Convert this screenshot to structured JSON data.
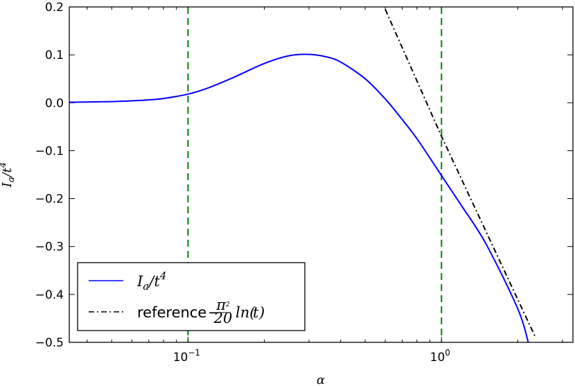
{
  "chart_data": {
    "type": "line",
    "x_scale": "log",
    "xlabel": "α",
    "ylabel": "I_a/t^4",
    "xlim": [
      0.034,
      3.3
    ],
    "ylim": [
      -0.5,
      0.2
    ],
    "y_ticks": [
      "0.2",
      "0.1",
      "0.0",
      "−0.1",
      "−0.2",
      "−0.3",
      "−0.4",
      "−0.5"
    ],
    "x_ticks": [
      {
        "base": "10",
        "exp": "−1"
      },
      {
        "base": "10",
        "exp": "0"
      }
    ],
    "vlines": [
      0.1,
      1.0
    ],
    "vline_color": "#008000",
    "series": [
      {
        "name": "I_a/t^4",
        "color": "#0000ff",
        "style": "solid",
        "x": [
          0.034,
          0.04,
          0.05,
          0.06,
          0.07,
          0.08,
          0.1,
          0.12,
          0.15,
          0.2,
          0.25,
          0.3,
          0.35,
          0.4,
          0.5,
          0.6,
          0.7,
          0.8,
          1.0,
          1.2,
          1.5,
          2.0,
          2.2
        ],
        "y": [
          0.001,
          0.0015,
          0.0025,
          0.004,
          0.006,
          0.009,
          0.018,
          0.031,
          0.052,
          0.082,
          0.098,
          0.101,
          0.096,
          0.085,
          0.05,
          0.008,
          -0.035,
          -0.075,
          -0.152,
          -0.215,
          -0.295,
          -0.43,
          -0.5
        ]
      },
      {
        "name": "reference −(π²/20) ln(t)",
        "color": "#000000",
        "style": "dashdot",
        "x": [
          0.6,
          1.0,
          2.35
        ],
        "y": [
          0.195,
          -0.07,
          -0.49
        ]
      }
    ],
    "legend": {
      "placement": "lower-left",
      "entries": [
        {
          "label": "I_a/t^4"
        },
        {
          "label": "reference −(π²/20) ln(t)"
        }
      ]
    }
  }
}
